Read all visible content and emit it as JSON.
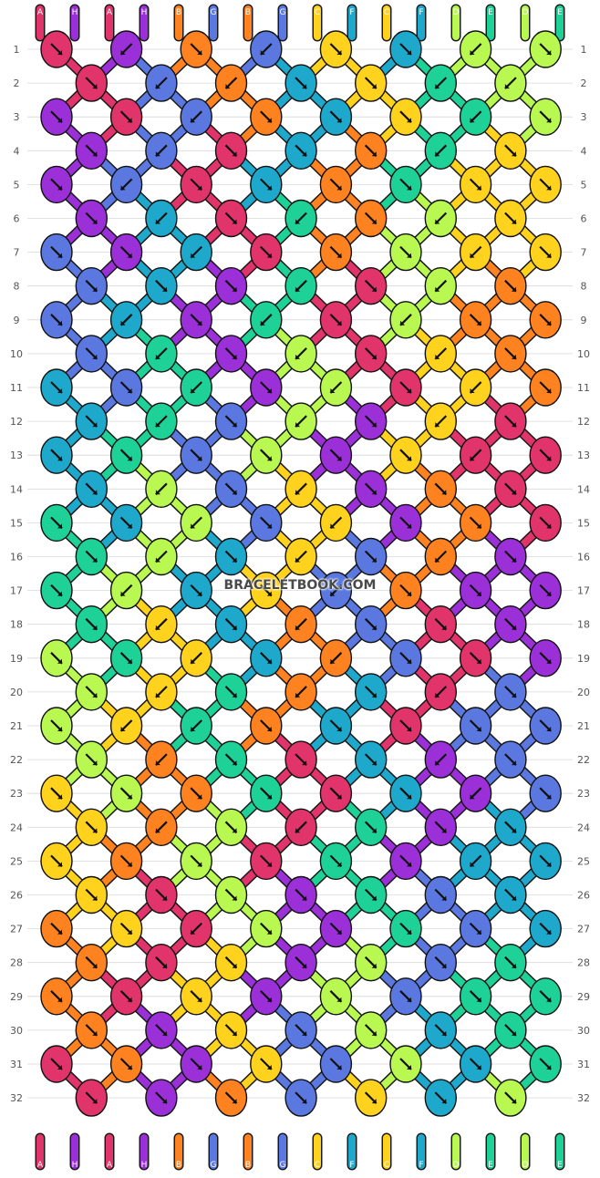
{
  "watermark": "BRACELETBOOK.COM",
  "colors": {
    "A": "#e0346a",
    "H": "#9b30d8",
    "B": "#ff8220",
    "G": "#5a78e0",
    "C": "#ffd21e",
    "F": "#1ea9cc",
    "D": "#b8f850",
    "E": "#1ed297"
  },
  "strings_top": [
    "A",
    "H",
    "A",
    "H",
    "B",
    "G",
    "B",
    "G",
    "C",
    "F",
    "C",
    "F",
    "D",
    "E",
    "D",
    "E"
  ],
  "strings_bottom": [
    "A",
    "H",
    "A",
    "H",
    "B",
    "G",
    "B",
    "G",
    "C",
    "F",
    "C",
    "F",
    "D",
    "E",
    "D",
    "E"
  ],
  "row_labels": [
    "1",
    "2",
    "3",
    "4",
    "5",
    "6",
    "7",
    "8",
    "9",
    "10",
    "11",
    "12",
    "13",
    "14",
    "15",
    "16",
    "17",
    "18",
    "19",
    "20",
    "21",
    "22",
    "23",
    "24",
    "25",
    "26",
    "27",
    "28",
    "29",
    "30",
    "31",
    "32"
  ],
  "knot_grid": [
    [
      "A",
      "H",
      "B",
      "G",
      "C",
      "F",
      "D",
      "D"
    ],
    [
      "A",
      "G",
      "B",
      "F",
      "C",
      "E",
      "D"
    ],
    [
      "H",
      "A",
      "G",
      "B",
      "F",
      "C",
      "E",
      "D"
    ],
    [
      "H",
      "G",
      "A",
      "F",
      "B",
      "E",
      "C"
    ],
    [
      "H",
      "G",
      "A",
      "F",
      "B",
      "E",
      "C",
      "C"
    ],
    [
      "H",
      "F",
      "A",
      "E",
      "B",
      "D",
      "C"
    ],
    [
      "G",
      "H",
      "F",
      "A",
      "B",
      "D",
      "C",
      "C"
    ],
    [
      "G",
      "F",
      "H",
      "E",
      "A",
      "D",
      "B"
    ],
    [
      "G",
      "F",
      "H",
      "E",
      "A",
      "D",
      "B",
      "B"
    ],
    [
      "G",
      "E",
      "H",
      "D",
      "A",
      "C",
      "B"
    ],
    [
      "F",
      "G",
      "E",
      "H",
      "D",
      "A",
      "C",
      "B"
    ],
    [
      "F",
      "E",
      "G",
      "D",
      "H",
      "C",
      "A"
    ],
    [
      "F",
      "E",
      "G",
      "D",
      "H",
      "C",
      "A",
      "A"
    ],
    [
      "F",
      "D",
      "G",
      "C",
      "H",
      "B",
      "A"
    ],
    [
      "E",
      "F",
      "D",
      "G",
      "C",
      "H",
      "B",
      "A"
    ],
    [
      "E",
      "D",
      "F",
      "C",
      "G",
      "B",
      "H"
    ],
    [
      "E",
      "D",
      "F",
      "C",
      "G",
      "B",
      "H",
      "H"
    ],
    [
      "E",
      "C",
      "F",
      "B",
      "G",
      "A",
      "H"
    ],
    [
      "D",
      "E",
      "C",
      "F",
      "B",
      "G",
      "A",
      "H"
    ],
    [
      "D",
      "C",
      "E",
      "B",
      "F",
      "A",
      "G"
    ],
    [
      "D",
      "C",
      "E",
      "B",
      "F",
      "A",
      "G",
      "G"
    ],
    [
      "D",
      "B",
      "E",
      "A",
      "F",
      "H",
      "G"
    ],
    [
      "C",
      "D",
      "B",
      "E",
      "A",
      "F",
      "H",
      "G"
    ],
    [
      "C",
      "B",
      "D",
      "A",
      "E",
      "H",
      "F"
    ],
    [
      "C",
      "B",
      "D",
      "A",
      "E",
      "H",
      "F",
      "F"
    ],
    [
      "C",
      "A",
      "D",
      "H",
      "E",
      "G",
      "F"
    ],
    [
      "B",
      "C",
      "A",
      "D",
      "H",
      "E",
      "G",
      "F"
    ],
    [
      "B",
      "A",
      "C",
      "H",
      "D",
      "G",
      "E"
    ],
    [
      "B",
      "A",
      "C",
      "H",
      "D",
      "G",
      "E",
      "E"
    ],
    [
      "B",
      "H",
      "C",
      "G",
      "D",
      "F",
      "E"
    ],
    [
      "A",
      "B",
      "H",
      "C",
      "G",
      "D",
      "F",
      "E"
    ],
    [
      "A",
      "H",
      "B",
      "G",
      "C",
      "F",
      "D"
    ]
  ],
  "knot_dirs": [
    [
      "se",
      "sw",
      "se",
      "sw",
      "se",
      "se",
      "sw",
      "se"
    ],
    [
      "se",
      "sw",
      "sw",
      "se",
      "se",
      "sw",
      "sw"
    ],
    [
      "se",
      "se",
      "sw",
      "se",
      "se",
      "se",
      "sw",
      "se"
    ],
    [
      "se",
      "sw",
      "se",
      "se",
      "se",
      "sw",
      "se"
    ],
    [
      "se",
      "sw",
      "se",
      "se",
      "se",
      "se",
      "se",
      "se"
    ],
    [
      "se",
      "sw",
      "se",
      "sw",
      "se",
      "sw",
      "se"
    ],
    [
      "se",
      "se",
      "sw",
      "se",
      "se",
      "se",
      "sw",
      "se"
    ],
    [
      "se",
      "se",
      "se",
      "sw",
      "se",
      "sw",
      "se"
    ],
    [
      "se",
      "sw",
      "se",
      "sw",
      "se",
      "sw",
      "se",
      "se"
    ],
    [
      "se",
      "sw",
      "se",
      "sw",
      "se",
      "sw",
      "se"
    ],
    [
      "se",
      "se",
      "sw",
      "se",
      "sw",
      "se",
      "sw",
      "se"
    ],
    [
      "se",
      "sw",
      "se",
      "sw",
      "se",
      "sw",
      "se"
    ],
    [
      "se",
      "se",
      "se",
      "se",
      "se",
      "se",
      "sw",
      "se"
    ],
    [
      "se",
      "sw",
      "se",
      "sw",
      "se",
      "se",
      "se"
    ],
    [
      "se",
      "se",
      "sw",
      "se",
      "sw",
      "se",
      "se",
      "se"
    ],
    [
      "se",
      "sw",
      "se",
      "sw",
      "se",
      "sw",
      "se"
    ],
    [
      "se",
      "sw",
      "se",
      "se",
      "sw",
      "se",
      "se",
      "se"
    ],
    [
      "se",
      "sw",
      "se",
      "sw",
      "se",
      "se",
      "se"
    ],
    [
      "se",
      "se",
      "sw",
      "se",
      "sw",
      "se",
      "se",
      "se"
    ],
    [
      "se",
      "sw",
      "se",
      "sw",
      "se",
      "sw",
      "se"
    ],
    [
      "se",
      "sw",
      "sw",
      "se",
      "se",
      "se",
      "se",
      "se"
    ],
    [
      "se",
      "sw",
      "se",
      "se",
      "se",
      "sw",
      "se"
    ],
    [
      "se",
      "se",
      "se",
      "se",
      "se",
      "se",
      "sw",
      "se"
    ],
    [
      "se",
      "sw",
      "se",
      "sw",
      "se",
      "se",
      "se"
    ],
    [
      "se",
      "se",
      "se",
      "se",
      "se",
      "se",
      "sw",
      "se"
    ],
    [
      "se",
      "se",
      "se",
      "se",
      "se",
      "se",
      "se"
    ],
    [
      "se",
      "se",
      "sw",
      "se",
      "se",
      "se",
      "se",
      "se"
    ],
    [
      "se",
      "se",
      "se",
      "se",
      "se",
      "se",
      "se"
    ],
    [
      "se",
      "se",
      "se",
      "se",
      "se",
      "se",
      "se",
      "se"
    ],
    [
      "se",
      "se",
      "se",
      "se",
      "se",
      "se",
      "se"
    ],
    [
      "se",
      "se",
      "se",
      "se",
      "se",
      "se",
      "se",
      "se"
    ],
    [
      "se",
      "se",
      "se",
      "se",
      "se",
      "se",
      "se"
    ]
  ]
}
